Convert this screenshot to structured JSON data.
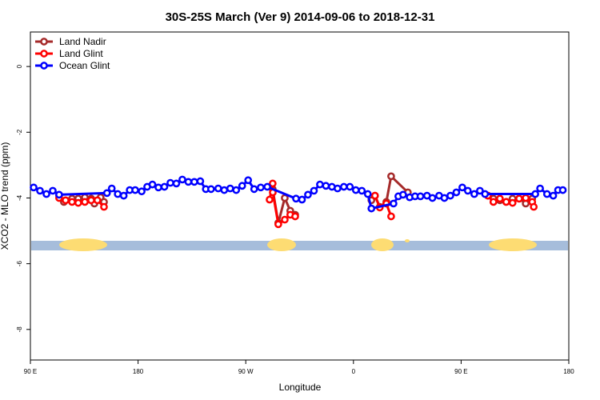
{
  "chart_data": {
    "type": "line",
    "title": "30S-25S March (Ver 9)   2014-09-06 to 2018-12-31",
    "xlabel": "Longitude",
    "ylabel": "XCO2 - MLO trend (ppm)",
    "xlim": [
      90,
      540
    ],
    "ylim": [
      -8.93,
      1.05
    ],
    "xticks": [
      {
        "value": 90,
        "label": "90 E"
      },
      {
        "value": 180,
        "label": "180"
      },
      {
        "value": 270,
        "label": "90 W"
      },
      {
        "value": 360,
        "label": "0"
      },
      {
        "value": 450,
        "label": "90 E"
      },
      {
        "value": 540,
        "label": "180"
      }
    ],
    "yticks": [
      0,
      -2,
      -4,
      -6,
      -8
    ],
    "legend": "top-left",
    "series": [
      {
        "name": "Land Nadir",
        "color": "#a52a2a",
        "x": [
          114,
          118,
          124.8,
          130,
          135.5,
          140.8,
          143.5,
          148.7,
          151.5,
          null,
          292.5,
          297.2,
          302.6,
          307.2,
          311.3,
          null,
          375,
          378,
          382,
          387.5,
          391.5,
          405.5,
          null,
          472.4,
          477,
          482.4,
          487.7,
          493,
          498.5,
          504,
          509.4
        ],
        "values": [
          -3.93,
          -4.12,
          -4.02,
          -4.02,
          -3.98,
          -4.02,
          -4.17,
          -3.98,
          -4.12,
          null,
          -3.73,
          -4.76,
          -4.0,
          -4.39,
          -4.51,
          null,
          -4.07,
          -3.93,
          -4.27,
          -4.12,
          -3.34,
          -3.83,
          null,
          -3.93,
          -4.02,
          -4.07,
          -4.12,
          -4.02,
          -4.02,
          -4.17,
          -4.02
        ]
      },
      {
        "name": "Land Glint",
        "color": "#ff0000",
        "x": [
          114,
          119.4,
          124.8,
          130,
          135.5,
          140.8,
          146,
          151.5,
          null,
          289.9,
          292.5,
          292.6,
          297.2,
          302.6,
          307.2,
          311.3,
          null,
          378,
          382,
          387.5,
          391.5,
          null,
          472.4,
          477,
          482.4,
          487.7,
          493,
          498.5,
          504,
          509.4,
          510.7
        ],
        "values": [
          -4.0,
          -4.07,
          -4.12,
          -4.15,
          -4.12,
          -4.07,
          -4.07,
          -4.27,
          null,
          -4.05,
          -3.56,
          -3.83,
          -4.8,
          -4.66,
          -4.51,
          -4.56,
          null,
          -3.93,
          -4.29,
          -4.17,
          -4.56,
          null,
          -3.93,
          -4.12,
          -4.02,
          -4.12,
          -4.15,
          -4.02,
          -4.0,
          -4.12,
          -4.27
        ]
      },
      {
        "name": "Ocean Glint",
        "color": "#0000ff",
        "x": [
          92.7,
          98,
          103.4,
          108.7,
          114,
          154,
          158,
          163,
          168,
          173,
          177.6,
          183,
          187.6,
          192,
          197,
          202,
          207,
          212,
          217,
          222,
          227,
          232,
          236.6,
          241,
          247,
          252,
          257,
          262,
          267,
          272,
          277,
          282.5,
          288,
          312,
          317,
          322,
          327,
          332,
          337,
          342,
          346.7,
          352,
          357,
          362,
          367,
          372,
          375,
          393.5,
          397.5,
          401.5,
          407,
          411.5,
          416,
          421.5,
          426,
          431.6,
          436,
          441,
          446,
          451,
          455.6,
          461,
          465.7,
          470,
          512,
          516,
          521.8,
          527,
          531,
          535
        ],
        "values": [
          -3.68,
          -3.78,
          -3.88,
          -3.78,
          -3.9,
          -3.85,
          -3.71,
          -3.88,
          -3.93,
          -3.76,
          -3.76,
          -3.8,
          -3.66,
          -3.59,
          -3.68,
          -3.66,
          -3.54,
          -3.56,
          -3.44,
          -3.51,
          -3.51,
          -3.49,
          -3.73,
          -3.73,
          -3.71,
          -3.76,
          -3.71,
          -3.76,
          -3.63,
          -3.46,
          -3.73,
          -3.68,
          -3.66,
          -4.02,
          -4.05,
          -3.9,
          -3.78,
          -3.59,
          -3.63,
          -3.66,
          -3.71,
          -3.66,
          -3.66,
          -3.76,
          -3.78,
          -3.88,
          -4.32,
          -4.17,
          -3.95,
          -3.9,
          -3.98,
          -3.95,
          -3.95,
          -3.93,
          -4.0,
          -3.93,
          -4.0,
          -3.93,
          -3.83,
          -3.68,
          -3.78,
          -3.88,
          -3.78,
          -3.88,
          -3.88,
          -3.71,
          -3.88,
          -3.93,
          -3.76,
          -3.76
        ]
      }
    ]
  }
}
